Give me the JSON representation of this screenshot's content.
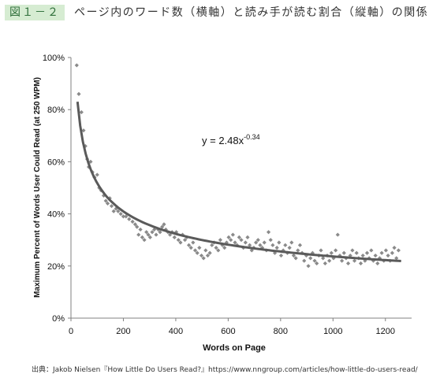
{
  "figure": {
    "tag": "図１－２",
    "title": "ページ内のワード数（横軸）と読み手が読む割合（縦軸）の関係"
  },
  "source": "出典：Jakob Nielsen『How Little Do Users Read?』https://www.nngroup.com/articles/how-little-do-users-read/",
  "colors": {
    "points": "#8a8a8a",
    "curve": "#5a5a5a",
    "axis": "#808080",
    "tag_bg": "#d6ecd2"
  },
  "chart_data": {
    "type": "scatter",
    "title": "",
    "xlabel": "Words on Page",
    "ylabel": "Maximum Percent of Words User Could Read (at 250 WPM)",
    "xlim": [
      0,
      1300
    ],
    "ylim": [
      0,
      100
    ],
    "x_ticks": [
      "0",
      "200",
      "400",
      "600",
      "800",
      "1000",
      "1200"
    ],
    "y_ticks": [
      "0%",
      "20%",
      "40%",
      "60%",
      "80%",
      "100%"
    ],
    "grid": false,
    "legend": "none",
    "trendline": {
      "equation": "y = 2.48x",
      "exponent": "-0.34",
      "a": 2.48,
      "b": -0.34,
      "x_range": [
        25,
        1260
      ]
    },
    "points": [
      [
        22,
        97
      ],
      [
        30,
        86
      ],
      [
        40,
        79
      ],
      [
        48,
        72
      ],
      [
        55,
        66
      ],
      [
        62,
        61
      ],
      [
        68,
        58
      ],
      [
        75,
        60
      ],
      [
        82,
        56
      ],
      [
        90,
        54
      ],
      [
        100,
        55
      ],
      [
        108,
        50
      ],
      [
        115,
        49
      ],
      [
        125,
        47
      ],
      [
        133,
        45
      ],
      [
        140,
        44
      ],
      [
        148,
        46
      ],
      [
        155,
        43
      ],
      [
        163,
        41
      ],
      [
        172,
        42
      ],
      [
        180,
        41
      ],
      [
        190,
        40
      ],
      [
        200,
        39
      ],
      [
        210,
        39
      ],
      [
        222,
        38
      ],
      [
        235,
        37
      ],
      [
        245,
        36
      ],
      [
        252,
        35
      ],
      [
        258,
        32
      ],
      [
        265,
        34
      ],
      [
        272,
        31
      ],
      [
        280,
        30
      ],
      [
        288,
        33
      ],
      [
        295,
        32
      ],
      [
        302,
        31
      ],
      [
        310,
        33
      ],
      [
        318,
        34
      ],
      [
        325,
        32
      ],
      [
        333,
        34
      ],
      [
        340,
        33
      ],
      [
        348,
        35
      ],
      [
        355,
        36
      ],
      [
        362,
        34
      ],
      [
        370,
        33
      ],
      [
        378,
        32
      ],
      [
        386,
        33
      ],
      [
        395,
        31
      ],
      [
        402,
        33
      ],
      [
        410,
        30
      ],
      [
        418,
        29
      ],
      [
        426,
        32
      ],
      [
        435,
        30
      ],
      [
        442,
        31
      ],
      [
        450,
        28
      ],
      [
        458,
        27
      ],
      [
        466,
        29
      ],
      [
        474,
        26
      ],
      [
        482,
        25
      ],
      [
        490,
        27
      ],
      [
        498,
        24
      ],
      [
        506,
        23
      ],
      [
        514,
        26
      ],
      [
        522,
        24
      ],
      [
        530,
        25
      ],
      [
        538,
        28
      ],
      [
        546,
        29
      ],
      [
        554,
        27
      ],
      [
        562,
        26
      ],
      [
        570,
        30
      ],
      [
        578,
        28
      ],
      [
        586,
        27
      ],
      [
        594,
        29
      ],
      [
        602,
        31
      ],
      [
        610,
        30
      ],
      [
        618,
        32
      ],
      [
        626,
        29
      ],
      [
        634,
        28
      ],
      [
        642,
        31
      ],
      [
        650,
        30
      ],
      [
        658,
        27
      ],
      [
        666,
        29
      ],
      [
        674,
        31
      ],
      [
        682,
        28
      ],
      [
        690,
        26
      ],
      [
        698,
        27
      ],
      [
        706,
        29
      ],
      [
        714,
        30
      ],
      [
        722,
        28
      ],
      [
        730,
        27
      ],
      [
        738,
        29
      ],
      [
        746,
        26
      ],
      [
        754,
        33
      ],
      [
        762,
        30
      ],
      [
        770,
        28
      ],
      [
        778,
        25
      ],
      [
        786,
        27
      ],
      [
        794,
        29
      ],
      [
        802,
        24
      ],
      [
        810,
        26
      ],
      [
        818,
        28
      ],
      [
        826,
        25
      ],
      [
        834,
        27
      ],
      [
        842,
        29
      ],
      [
        850,
        24
      ],
      [
        858,
        23
      ],
      [
        866,
        26
      ],
      [
        874,
        28
      ],
      [
        882,
        25
      ],
      [
        890,
        22
      ],
      [
        898,
        24
      ],
      [
        906,
        20
      ],
      [
        914,
        23
      ],
      [
        922,
        25
      ],
      [
        930,
        22
      ],
      [
        938,
        21
      ],
      [
        946,
        24
      ],
      [
        954,
        26
      ],
      [
        962,
        23
      ],
      [
        970,
        21
      ],
      [
        978,
        24
      ],
      [
        986,
        22
      ],
      [
        994,
        25
      ],
      [
        1002,
        23
      ],
      [
        1010,
        26
      ],
      [
        1018,
        32
      ],
      [
        1026,
        24
      ],
      [
        1034,
        22
      ],
      [
        1042,
        25
      ],
      [
        1050,
        23
      ],
      [
        1058,
        21
      ],
      [
        1066,
        24
      ],
      [
        1074,
        26
      ],
      [
        1082,
        22
      ],
      [
        1090,
        25
      ],
      [
        1098,
        23
      ],
      [
        1106,
        21
      ],
      [
        1114,
        24
      ],
      [
        1122,
        22
      ],
      [
        1130,
        25
      ],
      [
        1138,
        23
      ],
      [
        1146,
        26
      ],
      [
        1154,
        22
      ],
      [
        1162,
        24
      ],
      [
        1170,
        21
      ],
      [
        1178,
        23
      ],
      [
        1186,
        25
      ],
      [
        1194,
        22
      ],
      [
        1202,
        26
      ],
      [
        1210,
        24
      ],
      [
        1218,
        22
      ],
      [
        1226,
        25
      ],
      [
        1234,
        27
      ],
      [
        1242,
        23
      ],
      [
        1250,
        26
      ]
    ]
  }
}
